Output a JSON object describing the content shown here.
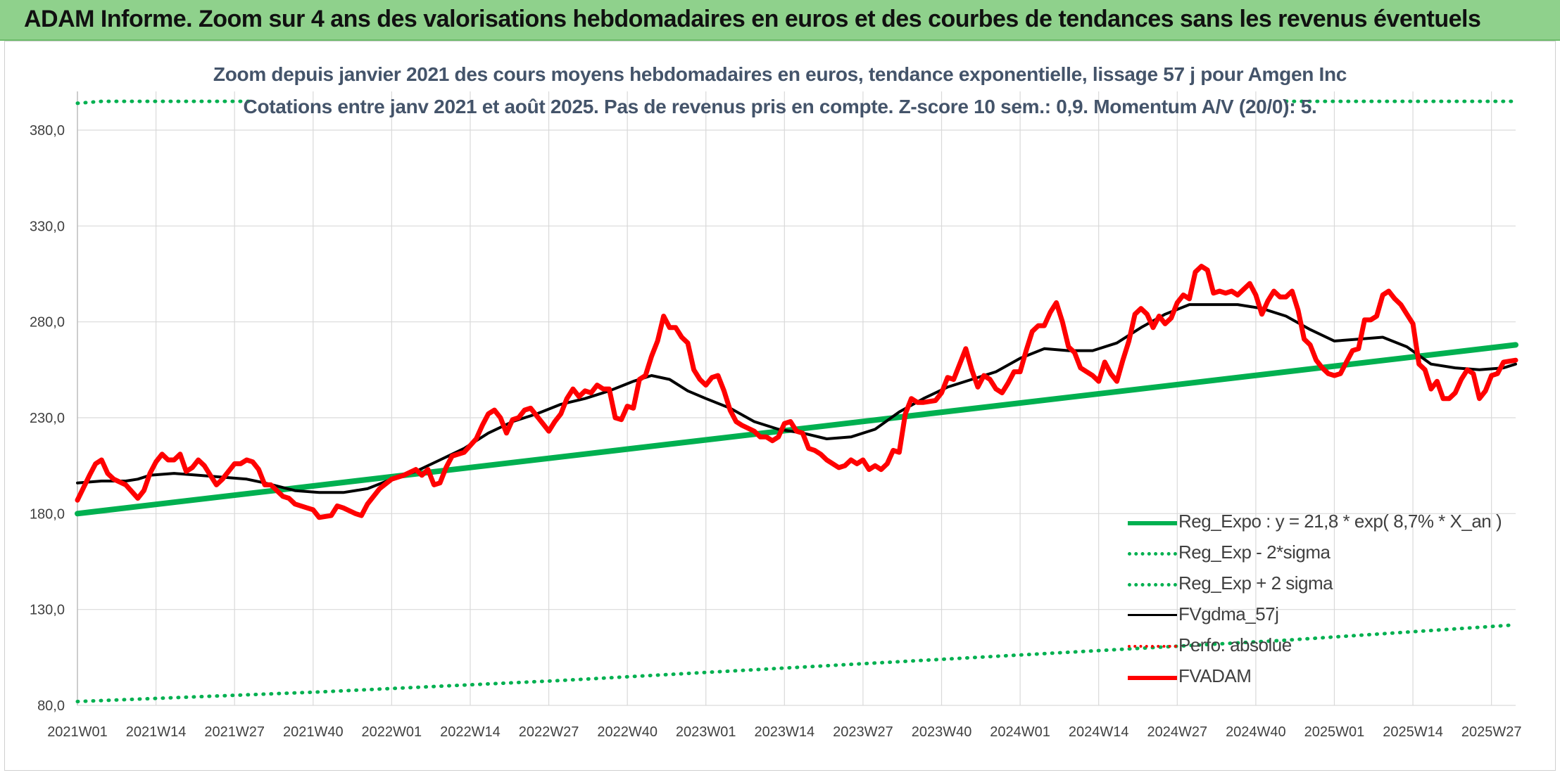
{
  "header": {
    "title": "ADAM Informe. Zoom sur 4 ans des valorisations hebdomadaires en euros et des courbes de tendances sans les revenus éventuels"
  },
  "colors": {
    "banner": "#8fd18c",
    "reg_expo": "#00b050",
    "fvgdma": "#000000",
    "fvadam": "#ff0000",
    "perfo": "#ff0000",
    "grid": "#d9d9d9"
  },
  "chart_data": {
    "type": "line",
    "title": "Zoom depuis janvier 2021 des cours moyens hebdomadaires en euros, tendance exponentielle, lissage 57 j pour Amgen Inc",
    "subtitle": "Cotations entre janv 2021 et août 2025. Pas de revenus pris en compte. Z-score 10 sem.: 0,9. Momentum A/V (20/0): 5.",
    "y_ticks": [
      "80,0",
      "130,0",
      "180,0",
      "230,0",
      "280,0",
      "330,0",
      "380,0"
    ],
    "ylim": [
      80,
      395
    ],
    "x_ticks": [
      "2021W01",
      "2021W14",
      "2021W27",
      "2021W40",
      "2022W01",
      "2022W14",
      "2022W27",
      "2022W40",
      "2023W01",
      "2023W14",
      "2023W27",
      "2023W40",
      "2024W01",
      "2024W14",
      "2024W27",
      "2024W40",
      "2025W01",
      "2025W14",
      "2025W27"
    ],
    "x_tick_index": [
      0,
      13,
      26,
      39,
      52,
      65,
      78,
      91,
      104,
      117,
      130,
      143,
      156,
      169,
      182,
      195,
      208,
      221,
      234
    ],
    "n_weeks": 239,
    "grid": true,
    "legend_position": "bottom-right",
    "series": [
      {
        "name": "Reg_Expo : y = 21,8 * exp( 8,7% *  X_an )",
        "style": "solid-thick",
        "points": [
          [
            0,
            180
          ],
          [
            238,
            268
          ]
        ]
      },
      {
        "name": "Reg_Exp - 2*sigma",
        "style": "dotted",
        "points": [
          [
            0,
            82
          ],
          [
            40,
            87
          ],
          [
            80,
            93
          ],
          [
            120,
            100
          ],
          [
            160,
            107
          ],
          [
            200,
            114
          ],
          [
            238,
            122
          ]
        ]
      },
      {
        "name": "Reg_Exp + 2 sigma",
        "style": "dotted",
        "points": [
          [
            0,
            394
          ],
          [
            4,
            396
          ],
          [
            8,
            398
          ],
          [
            12,
            400
          ],
          [
            29,
            400
          ]
        ],
        "points_right": [
          [
            200,
            400
          ],
          [
            238,
            400
          ]
        ]
      },
      {
        "name": "FVgdma_57j",
        "style": "solid",
        "points": [
          [
            0,
            196
          ],
          [
            4,
            197
          ],
          [
            8,
            197
          ],
          [
            10,
            198
          ],
          [
            12,
            200
          ],
          [
            16,
            201
          ],
          [
            20,
            200
          ],
          [
            24,
            199
          ],
          [
            28,
            198
          ],
          [
            31,
            196
          ],
          [
            36,
            192
          ],
          [
            40,
            191
          ],
          [
            44,
            191
          ],
          [
            48,
            193
          ],
          [
            52,
            198
          ],
          [
            56,
            202
          ],
          [
            60,
            208
          ],
          [
            64,
            214
          ],
          [
            68,
            222
          ],
          [
            72,
            228
          ],
          [
            76,
            232
          ],
          [
            80,
            237
          ],
          [
            84,
            240
          ],
          [
            88,
            244
          ],
          [
            92,
            249
          ],
          [
            95,
            252
          ],
          [
            98,
            250
          ],
          [
            101,
            244
          ],
          [
            104,
            240
          ],
          [
            108,
            235
          ],
          [
            112,
            228
          ],
          [
            116,
            224
          ],
          [
            120,
            222
          ],
          [
            124,
            219
          ],
          [
            128,
            220
          ],
          [
            132,
            224
          ],
          [
            136,
            233
          ],
          [
            140,
            240
          ],
          [
            144,
            246
          ],
          [
            148,
            250
          ],
          [
            152,
            254
          ],
          [
            156,
            261
          ],
          [
            160,
            266
          ],
          [
            164,
            265
          ],
          [
            168,
            265
          ],
          [
            172,
            269
          ],
          [
            176,
            277
          ],
          [
            180,
            284
          ],
          [
            184,
            289
          ],
          [
            188,
            289
          ],
          [
            192,
            289
          ],
          [
            196,
            287
          ],
          [
            200,
            283
          ],
          [
            204,
            276
          ],
          [
            208,
            270
          ],
          [
            212,
            271
          ],
          [
            216,
            272
          ],
          [
            220,
            267
          ],
          [
            224,
            258
          ],
          [
            228,
            256
          ],
          [
            232,
            255
          ],
          [
            236,
            256
          ],
          [
            238,
            258
          ]
        ]
      },
      {
        "name": "Perfo. absolue",
        "style": "dotted",
        "points": []
      },
      {
        "name": "FVADAM",
        "style": "solid-thick",
        "points": [
          [
            0,
            187
          ],
          [
            2,
            200
          ],
          [
            3,
            206
          ],
          [
            4,
            208
          ],
          [
            5,
            201
          ],
          [
            6,
            198
          ],
          [
            8,
            195
          ],
          [
            10,
            188
          ],
          [
            11,
            192
          ],
          [
            12,
            201
          ],
          [
            13,
            207
          ],
          [
            14,
            211
          ],
          [
            15,
            208
          ],
          [
            16,
            208
          ],
          [
            17,
            211
          ],
          [
            18,
            202
          ],
          [
            19,
            204
          ],
          [
            20,
            208
          ],
          [
            21,
            205
          ],
          [
            22,
            200
          ],
          [
            23,
            195
          ],
          [
            24,
            198
          ],
          [
            25,
            202
          ],
          [
            26,
            206
          ],
          [
            27,
            206
          ],
          [
            28,
            208
          ],
          [
            29,
            207
          ],
          [
            30,
            203
          ],
          [
            31,
            195
          ],
          [
            32,
            195
          ],
          [
            33,
            192
          ],
          [
            34,
            189
          ],
          [
            35,
            188
          ],
          [
            36,
            185
          ],
          [
            38,
            183
          ],
          [
            39,
            182
          ],
          [
            40,
            178
          ],
          [
            42,
            179
          ],
          [
            43,
            184
          ],
          [
            44,
            183
          ],
          [
            46,
            180
          ],
          [
            47,
            179
          ],
          [
            48,
            185
          ],
          [
            49,
            189
          ],
          [
            50,
            193
          ],
          [
            52,
            198
          ],
          [
            54,
            200
          ],
          [
            56,
            203
          ],
          [
            57,
            200
          ],
          [
            58,
            203
          ],
          [
            59,
            195
          ],
          [
            60,
            196
          ],
          [
            61,
            204
          ],
          [
            62,
            210
          ],
          [
            64,
            212
          ],
          [
            66,
            219
          ],
          [
            67,
            226
          ],
          [
            68,
            232
          ],
          [
            69,
            234
          ],
          [
            70,
            230
          ],
          [
            71,
            222
          ],
          [
            72,
            229
          ],
          [
            73,
            230
          ],
          [
            74,
            234
          ],
          [
            75,
            235
          ],
          [
            76,
            231
          ],
          [
            77,
            227
          ],
          [
            78,
            223
          ],
          [
            79,
            228
          ],
          [
            80,
            232
          ],
          [
            81,
            240
          ],
          [
            82,
            245
          ],
          [
            83,
            241
          ],
          [
            84,
            244
          ],
          [
            85,
            243
          ],
          [
            86,
            247
          ],
          [
            87,
            245
          ],
          [
            88,
            245
          ],
          [
            89,
            230
          ],
          [
            90,
            229
          ],
          [
            91,
            236
          ],
          [
            92,
            235
          ],
          [
            93,
            250
          ],
          [
            94,
            252
          ],
          [
            95,
            262
          ],
          [
            96,
            270
          ],
          [
            97,
            283
          ],
          [
            98,
            277
          ],
          [
            99,
            277
          ],
          [
            100,
            272
          ],
          [
            101,
            269
          ],
          [
            102,
            255
          ],
          [
            103,
            250
          ],
          [
            104,
            247
          ],
          [
            105,
            251
          ],
          [
            106,
            252
          ],
          [
            107,
            244
          ],
          [
            108,
            234
          ],
          [
            109,
            228
          ],
          [
            110,
            226
          ],
          [
            112,
            223
          ],
          [
            113,
            220
          ],
          [
            114,
            220
          ],
          [
            115,
            218
          ],
          [
            116,
            220
          ],
          [
            117,
            227
          ],
          [
            118,
            228
          ],
          [
            119,
            223
          ],
          [
            120,
            222
          ],
          [
            121,
            214
          ],
          [
            122,
            213
          ],
          [
            123,
            211
          ],
          [
            124,
            208
          ],
          [
            126,
            204
          ],
          [
            127,
            205
          ],
          [
            128,
            208
          ],
          [
            129,
            206
          ],
          [
            130,
            208
          ],
          [
            131,
            203
          ],
          [
            132,
            205
          ],
          [
            133,
            203
          ],
          [
            134,
            206
          ],
          [
            135,
            213
          ],
          [
            136,
            212
          ],
          [
            137,
            232
          ],
          [
            138,
            240
          ],
          [
            139,
            238
          ],
          [
            140,
            238
          ],
          [
            142,
            239
          ],
          [
            143,
            243
          ],
          [
            144,
            251
          ],
          [
            145,
            250
          ],
          [
            146,
            258
          ],
          [
            147,
            266
          ],
          [
            148,
            255
          ],
          [
            149,
            246
          ],
          [
            150,
            252
          ],
          [
            151,
            250
          ],
          [
            152,
            245
          ],
          [
            153,
            243
          ],
          [
            154,
            248
          ],
          [
            155,
            254
          ],
          [
            156,
            254
          ],
          [
            157,
            265
          ],
          [
            158,
            275
          ],
          [
            159,
            278
          ],
          [
            160,
            278
          ],
          [
            161,
            285
          ],
          [
            162,
            290
          ],
          [
            163,
            280
          ],
          [
            164,
            267
          ],
          [
            165,
            264
          ],
          [
            166,
            256
          ],
          [
            167,
            254
          ],
          [
            168,
            252
          ],
          [
            169,
            249
          ],
          [
            170,
            259
          ],
          [
            171,
            253
          ],
          [
            172,
            249
          ],
          [
            173,
            260
          ],
          [
            174,
            270
          ],
          [
            175,
            284
          ],
          [
            176,
            287
          ],
          [
            177,
            284
          ],
          [
            178,
            277
          ],
          [
            179,
            283
          ],
          [
            180,
            279
          ],
          [
            181,
            282
          ],
          [
            182,
            290
          ],
          [
            183,
            294
          ],
          [
            184,
            292
          ],
          [
            185,
            306
          ],
          [
            186,
            309
          ],
          [
            187,
            307
          ],
          [
            188,
            295
          ],
          [
            189,
            296
          ],
          [
            190,
            295
          ],
          [
            191,
            296
          ],
          [
            192,
            294
          ],
          [
            193,
            297
          ],
          [
            194,
            300
          ],
          [
            195,
            294
          ],
          [
            196,
            284
          ],
          [
            197,
            291
          ],
          [
            198,
            296
          ],
          [
            199,
            293
          ],
          [
            200,
            293
          ],
          [
            201,
            296
          ],
          [
            202,
            286
          ],
          [
            203,
            271
          ],
          [
            204,
            268
          ],
          [
            205,
            260
          ],
          [
            206,
            256
          ],
          [
            207,
            253
          ],
          [
            208,
            252
          ],
          [
            209,
            253
          ],
          [
            210,
            259
          ],
          [
            211,
            265
          ],
          [
            212,
            266
          ],
          [
            213,
            281
          ],
          [
            214,
            281
          ],
          [
            215,
            283
          ],
          [
            216,
            294
          ],
          [
            217,
            296
          ],
          [
            218,
            292
          ],
          [
            219,
            289
          ],
          [
            220,
            284
          ],
          [
            221,
            279
          ],
          [
            222,
            258
          ],
          [
            223,
            255
          ],
          [
            224,
            245
          ],
          [
            225,
            249
          ],
          [
            226,
            240
          ],
          [
            227,
            240
          ],
          [
            228,
            243
          ],
          [
            229,
            250
          ],
          [
            230,
            255
          ],
          [
            231,
            253
          ],
          [
            232,
            240
          ],
          [
            233,
            244
          ],
          [
            234,
            252
          ],
          [
            235,
            253
          ],
          [
            236,
            259
          ],
          [
            238,
            260
          ]
        ]
      }
    ]
  }
}
